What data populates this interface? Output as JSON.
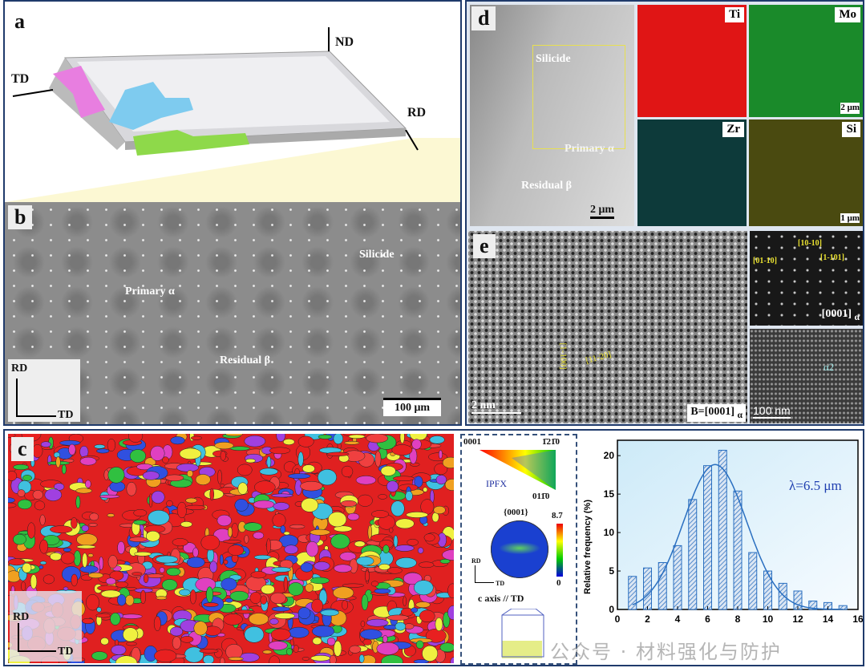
{
  "panels": {
    "a": {
      "label": "a",
      "axes": {
        "nd": "ND",
        "td": "TD",
        "rd": "RD"
      }
    },
    "b": {
      "label": "b",
      "annotations": {
        "silicide": "Silicide",
        "primary": "Primary α",
        "residual": "Residual β"
      },
      "scale_bar": "100 μm",
      "axes": {
        "rd": "RD",
        "td": "TD"
      }
    },
    "c": {
      "label": "c",
      "axes": {
        "rd": "RD",
        "td": "TD"
      },
      "ipf": {
        "corner_0001": "0001",
        "corner_1210": "1̄21̄0",
        "corner_0110": "011̄0",
        "title": "IPFX"
      },
      "pole_figure": {
        "title": "{0001}",
        "max": "8.7",
        "min": "0",
        "axes": {
          "rd": "RD",
          "td": "TD"
        }
      },
      "caption": "c axis // TD"
    },
    "d": {
      "label": "d",
      "annotations": {
        "silicide": "Silicide",
        "primary": "Primary α",
        "residual": "Residual β"
      },
      "scale_bar": "2 μm",
      "maps": [
        {
          "element": "Ti",
          "color": "#e01515"
        },
        {
          "element": "Mo",
          "color": "#1a8a2a"
        },
        {
          "element": "Zr",
          "color": "#0d3a3a"
        },
        {
          "element": "Si",
          "color": "#4a4a10"
        }
      ],
      "map_scale_bars": {
        "mo": "2 μm",
        "si": "1 μm"
      }
    },
    "e": {
      "label": "e",
      "directions": {
        "vertical": "[1-100]",
        "horizontal": "[11-20]"
      },
      "scale_bar": "2 nm",
      "zone_axis": "B=[0001]",
      "zone_sub": "α",
      "fft": {
        "spots": [
          "[01-10]",
          "[10-10]",
          "[1-101]"
        ],
        "zone": "[0001]",
        "zone_sub": "α"
      },
      "dark_field": {
        "label": "α2",
        "scale_bar": "100 nm"
      }
    }
  },
  "watermark": "公众号 · 材料强化与防护",
  "chart_data": {
    "type": "bar",
    "xlabel": "",
    "ylabel": "Relative frequency (%)",
    "x": [
      1,
      2,
      3,
      4,
      5,
      6,
      7,
      8,
      9,
      10,
      11,
      12,
      13,
      14,
      15
    ],
    "values": [
      4.3,
      5.4,
      6.1,
      8.3,
      14.3,
      18.7,
      20.7,
      15.4,
      7.4,
      5.0,
      3.4,
      2.4,
      1.1,
      0.9,
      0.5
    ],
    "fit": {
      "type": "gaussian fit",
      "mean": 6.5
    },
    "annotation": "λ=6.5 μm",
    "xlim": [
      0,
      16
    ],
    "ylim": [
      0,
      22
    ],
    "xticks": [
      0,
      2,
      4,
      6,
      8,
      10,
      12,
      14,
      16
    ],
    "yticks": [
      0,
      5,
      10,
      15,
      20
    ],
    "grid": false,
    "colors": {
      "bar": "#2a6fc0",
      "fit": "#2a6fc0",
      "annotation": "#1f3fb0"
    }
  }
}
